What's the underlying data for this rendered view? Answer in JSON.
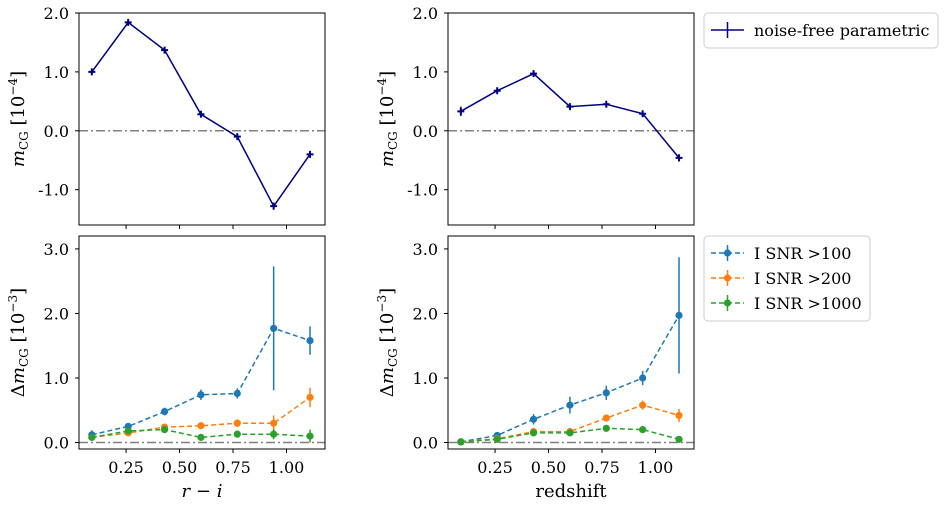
{
  "chart_data": [
    {
      "id": "top-left",
      "type": "line",
      "xlim": [
        0.03,
        1.18
      ],
      "ylim": [
        -1.6,
        2.0
      ],
      "xticks": [
        0.25,
        0.5,
        0.75,
        1.0
      ],
      "xtick_labels": [
        "",
        "",
        "",
        ""
      ],
      "yticks": [
        -1.0,
        0.0,
        1.0,
        2.0
      ],
      "ytick_labels": [
        "-1.0",
        "0.0",
        "1.0",
        "2.0"
      ],
      "ylabel": "m_CG [10^-4]",
      "xlabel": "",
      "hline": 0,
      "series": [
        {
          "name": "noise-free parametric",
          "color": "#000080",
          "style": "solid",
          "marker": "+",
          "x": [
            0.09,
            0.26,
            0.43,
            0.6,
            0.77,
            0.94,
            1.11
          ],
          "y": [
            1.0,
            1.84,
            1.37,
            0.28,
            -0.1,
            -1.28,
            -0.4
          ],
          "err": [
            0.05,
            0.03,
            0.03,
            0.04,
            0.04,
            0.06,
            0.03
          ]
        }
      ]
    },
    {
      "id": "top-right",
      "type": "line",
      "xlim": [
        0.03,
        1.18
      ],
      "ylim": [
        -1.6,
        2.0
      ],
      "xticks": [
        0.25,
        0.5,
        0.75,
        1.0
      ],
      "xtick_labels": [
        "",
        "",
        "",
        ""
      ],
      "yticks": [
        -1.0,
        0.0,
        1.0,
        2.0
      ],
      "ytick_labels": [
        "-1.0",
        "0.0",
        "1.0",
        "2.0"
      ],
      "ylabel": "m_CG [10^-4]",
      "xlabel": "",
      "hline": 0,
      "series": [
        {
          "name": "noise-free parametric",
          "color": "#000080",
          "style": "solid",
          "marker": "+",
          "x": [
            0.09,
            0.26,
            0.43,
            0.6,
            0.77,
            0.94,
            1.11
          ],
          "y": [
            0.33,
            0.68,
            0.97,
            0.41,
            0.45,
            0.29,
            -0.46
          ],
          "err": [
            0.08,
            0.05,
            0.04,
            0.03,
            0.03,
            0.03,
            0.06
          ]
        }
      ]
    },
    {
      "id": "bottom-left",
      "type": "line",
      "xlim": [
        0.03,
        1.18
      ],
      "ylim": [
        -0.1,
        3.2
      ],
      "xticks": [
        0.25,
        0.5,
        0.75,
        1.0
      ],
      "xtick_labels": [
        "0.25",
        "0.50",
        "0.75",
        "1.00"
      ],
      "yticks": [
        0.0,
        1.0,
        2.0,
        3.0
      ],
      "ytick_labels": [
        "0.0",
        "1.0",
        "2.0",
        "3.0"
      ],
      "ylabel": "Δm_CG [10^-3]",
      "xlabel": "r − i",
      "hline": 0,
      "series": [
        {
          "name": "I SNR >100",
          "color": "#1f77b4",
          "style": "dashed",
          "marker": "o",
          "x": [
            0.09,
            0.26,
            0.43,
            0.6,
            0.77,
            0.94,
            1.11
          ],
          "y": [
            0.12,
            0.25,
            0.48,
            0.74,
            0.76,
            1.77,
            1.58
          ],
          "err": [
            0.07,
            0.05,
            0.06,
            0.08,
            0.08,
            0.96,
            0.22
          ]
        },
        {
          "name": "I SNR >200",
          "color": "#ff7f0e",
          "style": "dashed",
          "marker": "o",
          "x": [
            0.09,
            0.26,
            0.43,
            0.6,
            0.77,
            0.94,
            1.11
          ],
          "y": [
            0.08,
            0.15,
            0.24,
            0.26,
            0.3,
            0.3,
            0.7
          ],
          "err": [
            0.04,
            0.04,
            0.05,
            0.05,
            0.06,
            0.12,
            0.15
          ]
        },
        {
          "name": "I SNR >1000",
          "color": "#2ca02c",
          "style": "dashed",
          "marker": "o",
          "x": [
            0.09,
            0.26,
            0.43,
            0.6,
            0.77,
            0.94,
            1.11
          ],
          "y": [
            0.08,
            0.18,
            0.2,
            0.08,
            0.13,
            0.13,
            0.1
          ],
          "err": [
            0.04,
            0.04,
            0.04,
            0.04,
            0.05,
            0.08,
            0.1
          ]
        }
      ]
    },
    {
      "id": "bottom-right",
      "type": "line",
      "xlim": [
        0.03,
        1.18
      ],
      "ylim": [
        -0.1,
        3.2
      ],
      "xticks": [
        0.25,
        0.5,
        0.75,
        1.0
      ],
      "xtick_labels": [
        "0.25",
        "0.50",
        "0.75",
        "1.00"
      ],
      "yticks": [
        0.0,
        1.0,
        2.0,
        3.0
      ],
      "ytick_labels": [
        "0.0",
        "1.0",
        "2.0",
        "3.0"
      ],
      "ylabel": "Δm_CG [10^-3]",
      "xlabel": "redshift",
      "hline": 0,
      "series": [
        {
          "name": "I SNR >100",
          "color": "#1f77b4",
          "style": "dashed",
          "marker": "o",
          "x": [
            0.09,
            0.26,
            0.43,
            0.6,
            0.77,
            0.94,
            1.11
          ],
          "y": [
            0.01,
            0.11,
            0.36,
            0.58,
            0.77,
            1.0,
            1.97
          ],
          "err": [
            0.03,
            0.04,
            0.08,
            0.13,
            0.11,
            0.11,
            0.9
          ]
        },
        {
          "name": "I SNR >200",
          "color": "#ff7f0e",
          "style": "dashed",
          "marker": "o",
          "x": [
            0.09,
            0.26,
            0.43,
            0.6,
            0.77,
            0.94,
            1.11
          ],
          "y": [
            0.01,
            0.06,
            0.17,
            0.17,
            0.38,
            0.58,
            0.42
          ],
          "err": [
            0.02,
            0.03,
            0.04,
            0.04,
            0.05,
            0.07,
            0.1
          ]
        },
        {
          "name": "I SNR >1000",
          "color": "#2ca02c",
          "style": "dashed",
          "marker": "o",
          "x": [
            0.09,
            0.26,
            0.43,
            0.6,
            0.77,
            0.94,
            1.11
          ],
          "y": [
            0.01,
            0.05,
            0.15,
            0.15,
            0.22,
            0.2,
            0.05
          ],
          "err": [
            0.02,
            0.02,
            0.03,
            0.03,
            0.03,
            0.03,
            0.04
          ]
        }
      ]
    }
  ],
  "legends": {
    "top": [
      {
        "label": "noise-free parametric",
        "color": "#000080",
        "style": "solid",
        "marker": "+"
      }
    ],
    "bottom": [
      {
        "label": "I SNR >100",
        "color": "#1f77b4",
        "style": "dashed",
        "marker": "o"
      },
      {
        "label": "I SNR >200",
        "color": "#ff7f0e",
        "style": "dashed",
        "marker": "o"
      },
      {
        "label": "I SNR >1000",
        "color": "#2ca02c",
        "style": "dashed",
        "marker": "o"
      }
    ]
  },
  "colors": {
    "zero_line": "#808080",
    "axes": "#000000"
  }
}
